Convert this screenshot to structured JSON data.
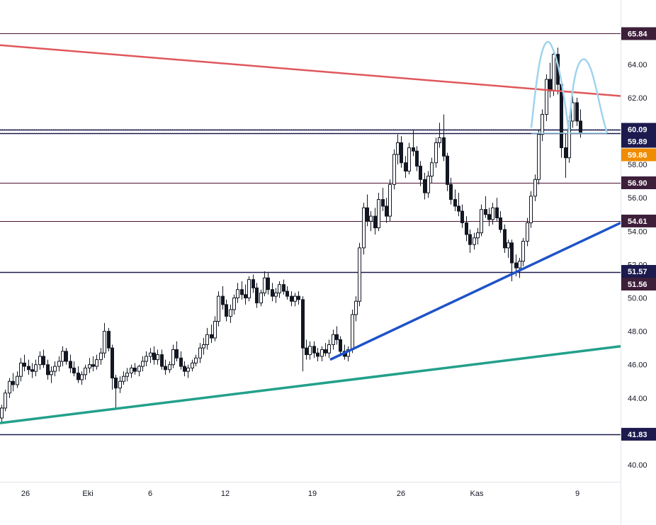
{
  "chart_data": {
    "type": "candlestick",
    "title": "",
    "xlabel": "",
    "ylabel": "",
    "ylim": [
      38.5,
      67.0
    ],
    "x_ticks": [
      "26",
      "Eki",
      "6",
      "12",
      "19",
      "26",
      "Kas",
      "9"
    ],
    "y_ticks": [
      "40.00",
      "42.00",
      "44.00",
      "46.00",
      "48.00",
      "50.00",
      "52.00",
      "54.00",
      "56.00",
      "58.00",
      "60.00",
      "62.00",
      "64.00"
    ],
    "grid": false,
    "colors": {
      "candle": "#131722",
      "resistance_trendline": "#e0575b",
      "support_trendline_blue": "#1e53c8",
      "support_trendline_green": "#22a08a",
      "pattern_arcs": "#9fd4ec",
      "horizontal_level": "#4a1430",
      "dark_tag": "#3d1f3a",
      "navy_tag": "#1c1a4e",
      "price_tag": "#f08c00"
    },
    "price_levels": [
      {
        "label": "65.84",
        "value": 65.84,
        "style": "dark"
      },
      {
        "label": "60.09",
        "value": 60.09,
        "style": "navy"
      },
      {
        "label": "59.89",
        "value": 59.89,
        "style": "navy"
      },
      {
        "label": "59.86",
        "value": 59.86,
        "style": "current"
      },
      {
        "label": "56.90",
        "value": 56.9,
        "style": "dark"
      },
      {
        "label": "54.61",
        "value": 54.61,
        "style": "dark"
      },
      {
        "label": "51.57",
        "value": 51.57,
        "style": "navy"
      },
      {
        "label": "51.56",
        "value": 51.56,
        "style": "dark"
      },
      {
        "label": "41.83",
        "value": 41.83,
        "style": "navy"
      }
    ],
    "series": [
      {
        "values": [
          [
            42.8,
            43.6,
            42.5,
            43.4
          ],
          [
            43.4,
            44.5,
            43.2,
            44.3
          ],
          [
            44.3,
            45.2,
            44.0,
            45.0
          ],
          [
            45.0,
            45.5,
            44.4,
            44.8
          ],
          [
            44.8,
            45.6,
            44.6,
            45.3
          ],
          [
            45.3,
            46.4,
            45.0,
            46.1
          ],
          [
            46.1,
            46.6,
            45.6,
            45.9
          ],
          [
            45.9,
            46.3,
            45.4,
            45.7
          ],
          [
            45.7,
            46.1,
            45.2,
            45.6
          ],
          [
            45.6,
            46.3,
            45.3,
            46.0
          ],
          [
            46.0,
            46.8,
            45.7,
            46.5
          ],
          [
            46.5,
            46.9,
            45.8,
            46.0
          ],
          [
            46.0,
            46.3,
            45.1,
            45.4
          ],
          [
            45.4,
            45.9,
            44.9,
            45.6
          ],
          [
            45.6,
            46.2,
            45.3,
            45.9
          ],
          [
            45.9,
            46.5,
            45.6,
            46.2
          ],
          [
            46.2,
            47.1,
            45.9,
            46.8
          ],
          [
            46.8,
            47.0,
            46.0,
            46.2
          ],
          [
            46.2,
            46.6,
            45.5,
            45.8
          ],
          [
            45.8,
            46.2,
            45.3,
            45.5
          ],
          [
            45.5,
            45.9,
            44.9,
            45.1
          ],
          [
            45.1,
            45.6,
            44.8,
            45.4
          ],
          [
            45.4,
            46.0,
            45.1,
            45.8
          ],
          [
            45.8,
            46.4,
            45.5,
            46.0
          ],
          [
            46.0,
            46.5,
            45.6,
            45.9
          ],
          [
            45.9,
            46.6,
            45.7,
            46.3
          ],
          [
            46.3,
            47.0,
            46.0,
            46.7
          ],
          [
            46.7,
            48.5,
            46.4,
            48.0
          ],
          [
            48.0,
            48.2,
            46.8,
            47.0
          ],
          [
            47.0,
            47.2,
            44.5,
            45.2
          ],
          [
            45.2,
            45.4,
            43.3,
            44.6
          ],
          [
            44.6,
            45.3,
            44.3,
            45.0
          ],
          [
            45.0,
            45.6,
            44.8,
            45.3
          ],
          [
            45.3,
            45.8,
            45.0,
            45.5
          ],
          [
            45.5,
            46.0,
            45.2,
            45.8
          ],
          [
            45.8,
            46.1,
            45.4,
            45.6
          ],
          [
            45.6,
            46.0,
            45.3,
            45.9
          ],
          [
            45.9,
            46.5,
            45.6,
            46.2
          ],
          [
            46.2,
            46.8,
            45.9,
            46.5
          ],
          [
            46.5,
            47.0,
            46.1,
            46.7
          ],
          [
            46.7,
            47.1,
            46.0,
            46.3
          ],
          [
            46.3,
            46.9,
            46.0,
            46.6
          ],
          [
            46.6,
            46.9,
            45.7,
            45.9
          ],
          [
            45.9,
            46.3,
            45.4,
            45.7
          ],
          [
            45.7,
            46.2,
            45.5,
            46.0
          ],
          [
            46.0,
            47.2,
            45.8,
            46.9
          ],
          [
            46.9,
            47.4,
            46.2,
            46.4
          ],
          [
            46.4,
            46.8,
            45.7,
            45.9
          ],
          [
            45.9,
            46.2,
            45.3,
            45.6
          ],
          [
            45.6,
            46.0,
            45.2,
            45.8
          ],
          [
            45.8,
            46.3,
            45.6,
            46.1
          ],
          [
            46.1,
            46.6,
            45.9,
            46.4
          ],
          [
            46.4,
            47.3,
            46.1,
            47.0
          ],
          [
            47.0,
            47.6,
            46.6,
            47.2
          ],
          [
            47.2,
            48.2,
            46.9,
            47.8
          ],
          [
            47.8,
            48.4,
            47.3,
            47.6
          ],
          [
            47.6,
            48.9,
            47.4,
            48.6
          ],
          [
            48.6,
            50.4,
            48.3,
            50.1
          ],
          [
            50.1,
            50.7,
            49.3,
            49.6
          ],
          [
            49.6,
            49.9,
            48.6,
            48.9
          ],
          [
            48.9,
            49.6,
            48.5,
            49.3
          ],
          [
            49.3,
            50.2,
            49.0,
            50.0
          ],
          [
            50.0,
            50.9,
            49.7,
            50.5
          ],
          [
            50.5,
            51.0,
            49.9,
            50.2
          ],
          [
            50.2,
            50.8,
            49.6,
            50.0
          ],
          [
            50.0,
            51.3,
            49.8,
            51.1
          ],
          [
            51.1,
            51.4,
            50.3,
            50.6
          ],
          [
            50.6,
            50.9,
            49.4,
            49.7
          ],
          [
            49.7,
            50.5,
            49.5,
            50.3
          ],
          [
            50.3,
            51.6,
            50.1,
            51.2
          ],
          [
            51.2,
            51.5,
            50.2,
            50.5
          ],
          [
            50.5,
            50.9,
            49.8,
            50.1
          ],
          [
            50.1,
            50.6,
            49.7,
            50.3
          ],
          [
            50.3,
            51.0,
            50.0,
            50.8
          ],
          [
            50.8,
            51.1,
            50.2,
            50.4
          ],
          [
            50.4,
            50.7,
            49.9,
            50.1
          ],
          [
            50.1,
            50.4,
            49.5,
            49.8
          ],
          [
            49.8,
            50.3,
            49.5,
            50.1
          ],
          [
            50.1,
            50.4,
            49.6,
            49.9
          ],
          [
            49.9,
            50.1,
            45.6,
            47.0
          ],
          [
            47.0,
            47.5,
            46.3,
            46.6
          ],
          [
            46.6,
            47.4,
            46.3,
            47.1
          ],
          [
            47.1,
            47.4,
            46.4,
            46.7
          ],
          [
            46.7,
            47.0,
            46.2,
            46.5
          ],
          [
            46.5,
            47.1,
            46.2,
            46.9
          ],
          [
            46.9,
            47.3,
            46.5,
            46.7
          ],
          [
            46.7,
            47.5,
            46.4,
            47.2
          ],
          [
            47.2,
            48.1,
            46.9,
            47.8
          ],
          [
            47.8,
            48.3,
            47.2,
            47.5
          ],
          [
            47.5,
            47.7,
            46.5,
            46.8
          ],
          [
            46.8,
            47.2,
            46.3,
            46.5
          ],
          [
            46.5,
            47.1,
            46.2,
            46.9
          ],
          [
            46.9,
            49.3,
            46.7,
            49.0
          ],
          [
            49.0,
            50.1,
            48.6,
            49.8
          ],
          [
            49.8,
            53.3,
            49.5,
            53.0
          ],
          [
            53.0,
            55.7,
            52.6,
            55.4
          ],
          [
            55.4,
            56.2,
            54.3,
            54.6
          ],
          [
            54.6,
            55.2,
            54.0,
            54.9
          ],
          [
            54.9,
            55.4,
            53.8,
            54.2
          ],
          [
            54.2,
            56.3,
            54.0,
            55.9
          ],
          [
            55.9,
            56.6,
            55.2,
            55.5
          ],
          [
            55.5,
            56.0,
            54.5,
            54.9
          ],
          [
            54.9,
            57.1,
            54.6,
            56.8
          ],
          [
            56.8,
            58.9,
            56.5,
            58.6
          ],
          [
            58.6,
            59.8,
            58.0,
            59.3
          ],
          [
            59.3,
            59.7,
            57.8,
            58.1
          ],
          [
            58.1,
            58.5,
            57.2,
            57.6
          ],
          [
            57.6,
            59.3,
            57.4,
            59.0
          ],
          [
            59.0,
            60.1,
            58.5,
            58.8
          ],
          [
            58.8,
            59.1,
            57.6,
            57.9
          ],
          [
            57.9,
            58.2,
            56.7,
            57.1
          ],
          [
            57.1,
            57.5,
            55.9,
            56.3
          ],
          [
            56.3,
            57.6,
            56.0,
            57.3
          ],
          [
            57.3,
            58.4,
            56.9,
            58.1
          ],
          [
            58.1,
            59.6,
            57.8,
            59.3
          ],
          [
            59.3,
            60.5,
            59.0,
            59.6
          ],
          [
            59.6,
            61.0,
            58.2,
            58.5
          ],
          [
            58.5,
            58.7,
            56.4,
            56.8
          ],
          [
            56.8,
            57.2,
            55.6,
            55.9
          ],
          [
            55.9,
            56.5,
            55.2,
            55.5
          ],
          [
            55.5,
            56.3,
            54.9,
            55.2
          ],
          [
            55.2,
            55.6,
            54.2,
            54.5
          ],
          [
            54.5,
            54.9,
            53.4,
            53.8
          ],
          [
            53.8,
            54.1,
            52.7,
            53.2
          ],
          [
            53.2,
            53.9,
            52.9,
            53.6
          ],
          [
            53.6,
            54.2,
            53.2,
            53.9
          ],
          [
            53.9,
            55.6,
            53.7,
            55.3
          ],
          [
            55.3,
            56.1,
            54.8,
            55.0
          ],
          [
            55.0,
            55.4,
            54.3,
            54.7
          ],
          [
            54.7,
            55.7,
            54.4,
            55.4
          ],
          [
            55.4,
            56.0,
            54.6,
            54.8
          ],
          [
            54.8,
            55.2,
            53.9,
            54.1
          ],
          [
            54.1,
            54.4,
            52.7,
            53.0
          ],
          [
            53.0,
            53.5,
            52.4,
            53.3
          ],
          [
            53.3,
            53.5,
            51.0,
            52.1
          ],
          [
            52.1,
            52.6,
            51.3,
            51.8
          ],
          [
            51.8,
            52.4,
            51.2,
            52.2
          ],
          [
            52.2,
            53.6,
            51.9,
            53.4
          ],
          [
            53.4,
            54.8,
            53.1,
            54.5
          ],
          [
            54.5,
            56.4,
            54.2,
            56.1
          ],
          [
            56.1,
            57.4,
            55.8,
            57.1
          ],
          [
            57.1,
            60.1,
            56.8,
            59.8
          ],
          [
            59.8,
            61.3,
            59.4,
            61.0
          ],
          [
            61.0,
            63.4,
            60.6,
            63.1
          ],
          [
            63.1,
            64.1,
            62.0,
            62.4
          ],
          [
            62.4,
            64.9,
            62.1,
            64.6
          ],
          [
            64.6,
            65.0,
            62.2,
            62.8
          ],
          [
            62.8,
            63.1,
            58.4,
            59.0
          ],
          [
            59.0,
            59.9,
            57.2,
            58.4
          ],
          [
            58.4,
            60.9,
            58.1,
            60.6
          ],
          [
            60.6,
            62.1,
            60.2,
            61.7
          ],
          [
            61.7,
            62.0,
            60.3,
            60.6
          ],
          [
            60.6,
            61.3,
            59.6,
            59.9
          ]
        ]
      }
    ]
  }
}
